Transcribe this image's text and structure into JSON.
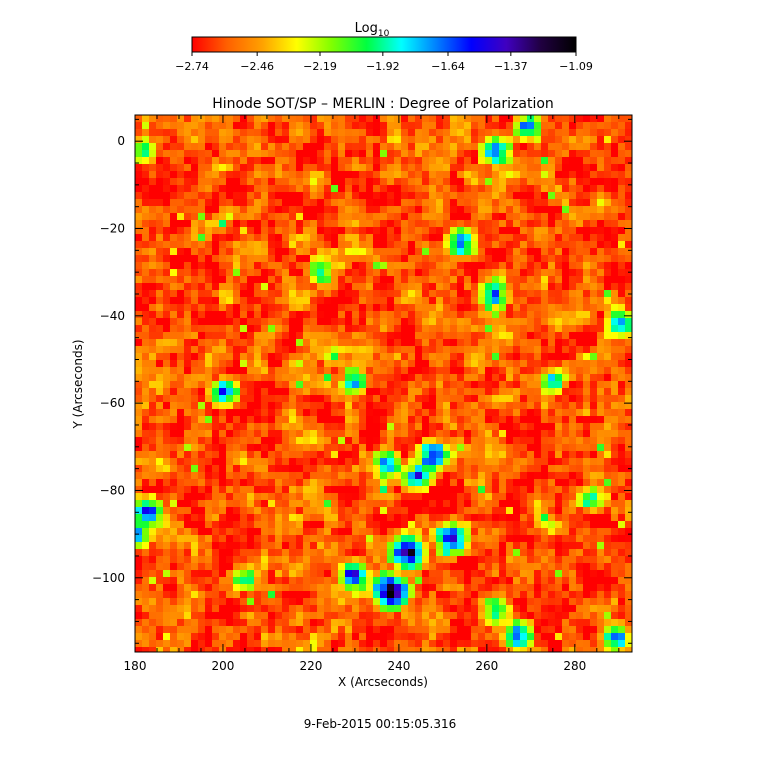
{
  "chart_data": {
    "type": "heatmap",
    "title": "Hinode SOT/SP – MERLIN : Degree of Polarization",
    "xlabel": "X (Arcseconds)",
    "ylabel": "Y (Arcseconds)",
    "xlim": [
      180,
      293
    ],
    "ylim": [
      -117,
      6
    ],
    "x_ticks": [
      180,
      200,
      220,
      240,
      260,
      280
    ],
    "x_tick_labels": [
      "180",
      "200",
      "220",
      "240",
      "260",
      "280"
    ],
    "y_ticks": [
      0,
      -20,
      -40,
      -60,
      -80,
      -100
    ],
    "y_tick_labels": [
      "0",
      "−20",
      "−40",
      "−60",
      "−80",
      "−100"
    ],
    "colorbar": {
      "label_main": "Log",
      "label_sub": "10",
      "range": [
        -2.74,
        -1.09
      ],
      "ticks": [
        -2.74,
        -2.46,
        -2.19,
        -1.92,
        -1.64,
        -1.37,
        -1.09
      ],
      "tick_labels": [
        "−2.74",
        "−2.46",
        "−2.19",
        "−1.92",
        "−1.64",
        "−1.37",
        "−1.09"
      ],
      "colormap": [
        "#ff0000",
        "#ff6000",
        "#ffa000",
        "#ffff00",
        "#80ff00",
        "#00ff40",
        "#00ffff",
        "#0080ff",
        "#0000ff",
        "#4000c0",
        "#200040",
        "#000000"
      ]
    },
    "grid": false,
    "strong_regions": [
      {
        "x": 238,
        "y": -103,
        "strength": 1.0
      },
      {
        "x": 242,
        "y": -94,
        "strength": 1.0
      },
      {
        "x": 252,
        "y": -91,
        "strength": 0.9
      },
      {
        "x": 230,
        "y": -100,
        "strength": 0.7
      },
      {
        "x": 248,
        "y": -72,
        "strength": 0.75
      },
      {
        "x": 244,
        "y": -77,
        "strength": 0.7
      },
      {
        "x": 237,
        "y": -74,
        "strength": 0.6
      },
      {
        "x": 183,
        "y": -85,
        "strength": 0.7
      },
      {
        "x": 181,
        "y": -90,
        "strength": 0.6
      },
      {
        "x": 267,
        "y": -113,
        "strength": 0.7
      },
      {
        "x": 262,
        "y": -108,
        "strength": 0.6
      },
      {
        "x": 254,
        "y": -23,
        "strength": 0.7
      },
      {
        "x": 262,
        "y": -35,
        "strength": 0.6
      },
      {
        "x": 262,
        "y": -2,
        "strength": 0.75
      },
      {
        "x": 269,
        "y": 3,
        "strength": 0.6
      },
      {
        "x": 290,
        "y": -42,
        "strength": 0.6
      },
      {
        "x": 290,
        "y": -114,
        "strength": 0.6
      },
      {
        "x": 200,
        "y": -58,
        "strength": 0.6
      },
      {
        "x": 182,
        "y": -2,
        "strength": 0.5
      },
      {
        "x": 230,
        "y": -55,
        "strength": 0.5
      },
      {
        "x": 275,
        "y": -55,
        "strength": 0.5
      },
      {
        "x": 205,
        "y": -100,
        "strength": 0.45
      },
      {
        "x": 222,
        "y": -30,
        "strength": 0.45
      },
      {
        "x": 284,
        "y": -82,
        "strength": 0.5
      }
    ]
  },
  "footer": {
    "timestamp": "9-Feb-2015 00:15:05.316"
  }
}
